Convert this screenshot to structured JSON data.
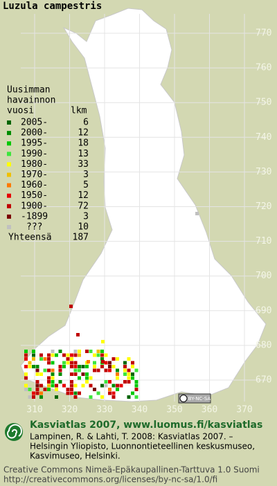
{
  "title": "Luzula campestris",
  "legend": {
    "header": [
      "Uusimman",
      "havainnon",
      "vuosi"
    ],
    "count_header": "lkm",
    "rows": [
      {
        "label": "2005-",
        "count": 6,
        "color": "#006400"
      },
      {
        "label": "2000-",
        "count": 12,
        "color": "#008c00"
      },
      {
        "label": "1995-",
        "count": 18,
        "color": "#00c800"
      },
      {
        "label": "1990-",
        "count": 13,
        "color": "#3ce63c"
      },
      {
        "label": "1980-",
        "count": 33,
        "color": "#ffff00"
      },
      {
        "label": "1970-",
        "count": 3,
        "color": "#f0c000"
      },
      {
        "label": "1960-",
        "count": 5,
        "color": "#ff7800"
      },
      {
        "label": "1950-",
        "count": 12,
        "color": "#e60000"
      },
      {
        "label": "1900-",
        "count": 72,
        "color": "#c00000"
      },
      {
        "label": "-1899",
        "count": 3,
        "color": "#7a0000"
      },
      {
        "label": "???",
        "count": 10,
        "color": "#c0c0c0"
      }
    ],
    "total_label": "Yhteensä",
    "total": 187
  },
  "grid_labels_y": [
    770,
    760,
    750,
    740,
    730,
    720,
    710,
    700,
    690,
    680,
    670
  ],
  "grid_labels_x": [
    310,
    320,
    330,
    340,
    350,
    360,
    370
  ],
  "cc_badge": "BY-NC-SA",
  "footer": {
    "atlas": "Kasviatlas 2007, www.luomus.fi/kasviatlas",
    "citation": [
      "Lampinen, R. & Lahti, T. 2008: Kasviatlas 2007. –",
      "Helsingin Yliopisto, Luonnontieteellinen keskusmuseo,",
      "Kasvimuseo, Helsinki."
    ],
    "license": [
      "Creative Commons Nimeä-Epäkaupallinen-Tarttuva 1.0 Suomi",
      "http://creativecommons.org/licenses/by-nc-sa/1.0/fi"
    ]
  }
}
